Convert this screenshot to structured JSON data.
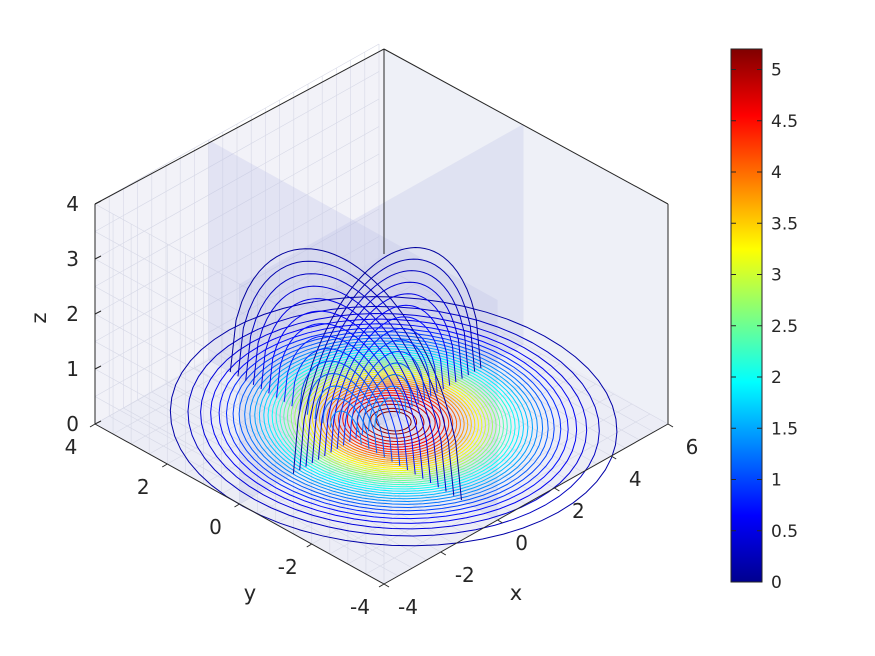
{
  "chart_data": {
    "type": "contour3d",
    "title": "",
    "xlabel": "x",
    "ylabel": "y",
    "zlabel": "z",
    "xlim": [
      -4,
      6
    ],
    "ylim": [
      -4,
      4
    ],
    "zlim": [
      0,
      4
    ],
    "x_ticks": [
      "-4",
      "-2",
      "0",
      "2",
      "4",
      "6"
    ],
    "y_ticks": [
      "-4",
      "-2",
      "0",
      "2",
      "4"
    ],
    "z_ticks": [
      "0",
      "1",
      "2",
      "3",
      "4"
    ],
    "colorbar": {
      "colormap": "jet",
      "range": [
        0,
        5.2
      ],
      "ticks": [
        "0",
        "0.5",
        "1",
        "1.5",
        "2",
        "2.5",
        "3",
        "3.5",
        "4",
        "4.5",
        "5"
      ]
    },
    "slice_planes": {
      "x": 0,
      "y": 0,
      "z": 0
    },
    "peak": {
      "x": 1,
      "y": 0,
      "value": 5.2
    },
    "grid": true,
    "colors": {
      "low": "#00008f",
      "high": "#800000",
      "plane_fill": "#b9bde6",
      "wall_fill": "#f2f2f8",
      "edge": "#262626"
    }
  }
}
